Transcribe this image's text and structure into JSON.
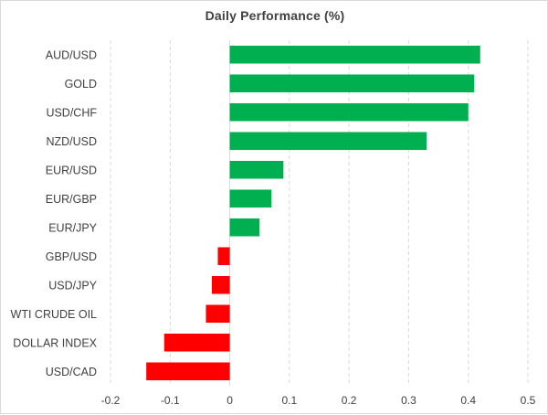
{
  "chart_data": {
    "type": "bar",
    "orientation": "horizontal",
    "title": "Daily Performance (%)",
    "xlabel": "",
    "ylabel": "",
    "categories": [
      "AUD/USD",
      "GOLD",
      "USD/CHF",
      "NZD/USD",
      "EUR/USD",
      "EUR/GBP",
      "EUR/JPY",
      "GBP/USD",
      "USD/JPY",
      "WTI CRUDE OIL",
      "DOLLAR INDEX",
      "USD/CAD"
    ],
    "values": [
      0.42,
      0.41,
      0.4,
      0.33,
      0.09,
      0.07,
      0.05,
      -0.02,
      -0.03,
      -0.04,
      -0.11,
      -0.14
    ],
    "xlim": [
      -0.2,
      0.5
    ],
    "xticks": [
      -0.2,
      -0.1,
      0,
      0.1,
      0.2,
      0.3,
      0.4,
      0.5
    ],
    "xtick_labels": [
      "-0.2",
      "-0.1",
      "0",
      "0.1",
      "0.2",
      "0.3",
      "0.4",
      "0.5"
    ],
    "grid": true,
    "legend": "none",
    "colors": {
      "positive": "#00b050",
      "negative": "#ff0000"
    }
  }
}
